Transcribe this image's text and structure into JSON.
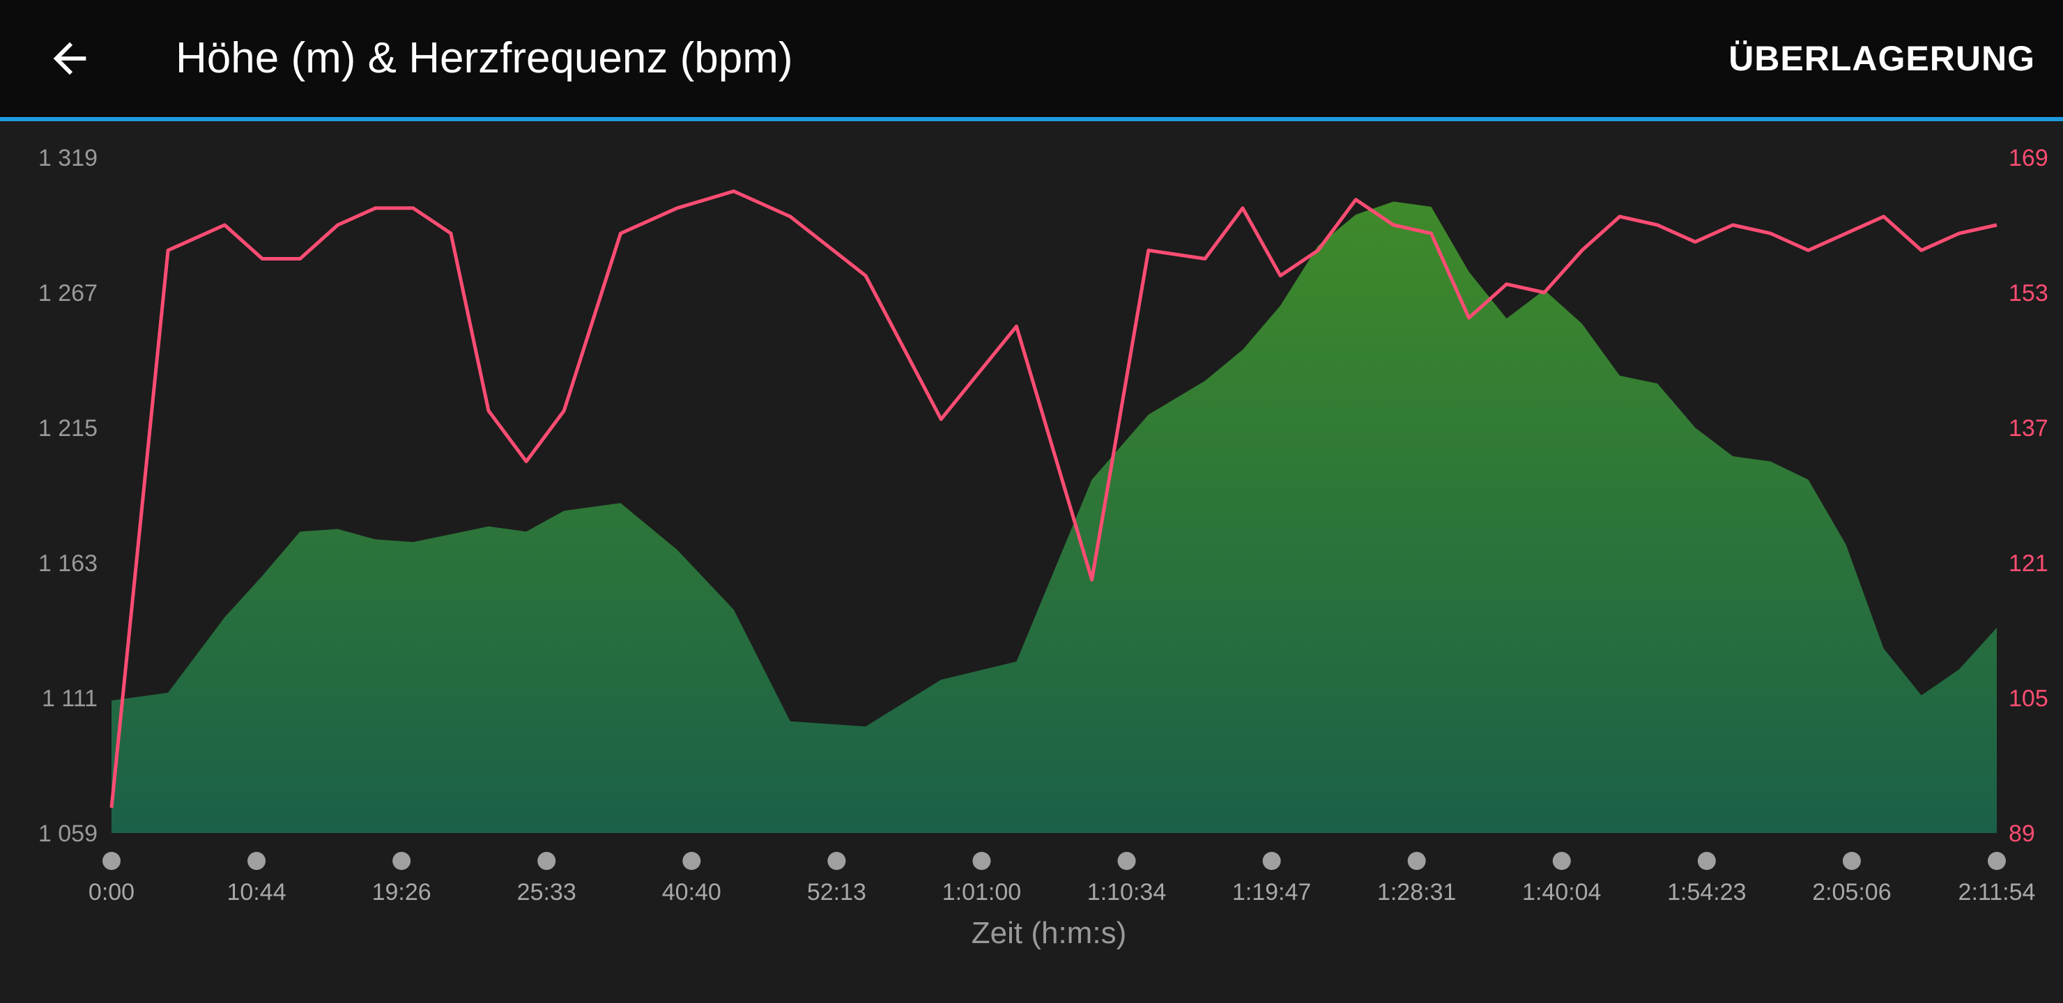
{
  "header": {
    "title": "Höhe (m) & Herzfrequenz (bpm)",
    "overlay_label": "ÜBERLAGERUNG",
    "back_icon": "arrow-left-icon"
  },
  "colors": {
    "header_bg": "#0b0b0b",
    "accent": "#1e9be0",
    "background": "#1c1c1c",
    "elevation_fill_top": "#3f8a2a",
    "elevation_fill_bottom": "#1b6048",
    "heart_rate_line": "#ff4d73",
    "axis_text": "#9a9a9a"
  },
  "chart_data": {
    "type": "area",
    "xlabel": "Zeit (h:m:s)",
    "x_tick_labels": [
      "0:00",
      "10:44",
      "19:26",
      "25:33",
      "40:40",
      "52:13",
      "1:01:00",
      "1:10:34",
      "1:19:47",
      "1:28:31",
      "1:40:04",
      "1:54:23",
      "2:05:06",
      "2:11:54"
    ],
    "y_left": {
      "ticks": [
        "1 319",
        "1 267",
        "1 215",
        "1 163",
        "1 111",
        "1 059"
      ],
      "range": [
        1059,
        1319
      ]
    },
    "y_right": {
      "ticks": [
        "169",
        "153",
        "137",
        "121",
        "105",
        "89"
      ],
      "range": [
        89,
        169
      ]
    },
    "x": [
      0,
      3,
      6,
      8,
      10,
      12,
      14,
      16,
      18,
      20,
      22,
      24,
      27,
      30,
      33,
      36,
      40,
      44,
      48,
      52,
      55,
      58,
      60,
      62,
      64,
      66,
      68,
      70,
      72,
      74,
      76,
      78,
      80,
      82,
      84,
      86,
      88,
      90,
      92,
      94,
      96,
      98,
      100
    ],
    "series": [
      {
        "axis": "left",
        "values": [
          1110,
          1113,
          1142,
          1158,
          1175,
          1176,
          1172,
          1171,
          1174,
          1177,
          1175,
          1183,
          1186,
          1168,
          1145,
          1102,
          1100,
          1118,
          1125,
          1195,
          1220,
          1233,
          1245,
          1262,
          1285,
          1297,
          1302,
          1300,
          1275,
          1257,
          1268,
          1255,
          1235,
          1232,
          1215,
          1204,
          1202,
          1195,
          1170,
          1130,
          1112,
          1122,
          1138
        ]
      },
      {
        "axis": "right",
        "values": [
          92,
          158,
          161,
          157,
          157,
          161,
          163,
          163,
          160,
          139,
          133,
          139,
          160,
          163,
          165,
          162,
          155,
          138,
          149,
          119,
          158,
          157,
          163,
          155,
          158,
          164,
          161,
          160,
          150,
          154,
          153,
          158,
          162,
          161,
          159,
          161,
          160,
          158,
          160,
          162,
          158,
          160,
          161
        ]
      }
    ]
  }
}
